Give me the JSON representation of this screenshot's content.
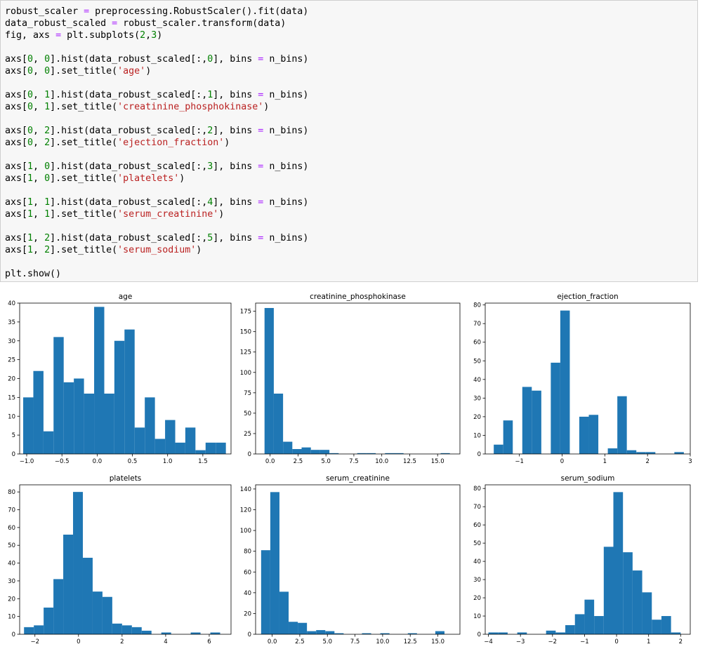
{
  "code": {
    "lines": [
      "robust_scaler = preprocessing.RobustScaler().fit(data)",
      "data_robust_scaled = robust_scaler.transform(data)",
      "fig, axs = plt.subplots(2,3)",
      "",
      "axs[0, 0].hist(data_robust_scaled[:,0], bins = n_bins)",
      "axs[0, 0].set_title('age')",
      "",
      "axs[0, 1].hist(data_robust_scaled[:,1], bins = n_bins)",
      "axs[0, 1].set_title('creatinine_phosphokinase')",
      "",
      "axs[0, 2].hist(data_robust_scaled[:,2], bins = n_bins)",
      "axs[0, 2].set_title('ejection_fraction')",
      "",
      "axs[1, 0].hist(data_robust_scaled[:,3], bins = n_bins)",
      "axs[1, 0].set_title('platelets')",
      "",
      "axs[1, 1].hist(data_robust_scaled[:,4], bins = n_bins)",
      "axs[1, 1].set_title('serum_creatinine')",
      "",
      "axs[1, 2].hist(data_robust_scaled[:,5], bins = n_bins)",
      "axs[1, 2].set_title('serum_sodium')",
      "",
      "plt.show()"
    ]
  },
  "colors": {
    "bar": "#1f77b4",
    "string": "#ba2121",
    "number": "#008000",
    "operator": "#aa22ff"
  },
  "chart_data": [
    {
      "type": "bar",
      "title": "age",
      "xlim": [
        -1.1,
        1.9
      ],
      "ylim": [
        0,
        40
      ],
      "xticks": [
        -1.0,
        -0.5,
        0.0,
        0.5,
        1.0,
        1.5
      ],
      "xtick_labels": [
        "−1.0",
        "−0.5",
        "0.0",
        "0.5",
        "1.0",
        "1.5"
      ],
      "yticks": [
        0,
        5,
        10,
        15,
        20,
        25,
        30,
        35,
        40
      ],
      "ytick_labels": [
        "0",
        "5",
        "10",
        "15",
        "20",
        "25",
        "30",
        "35",
        "40"
      ],
      "bin_edges": [
        -1.05,
        -0.906,
        -0.762,
        -0.619,
        -0.475,
        -0.331,
        -0.187,
        -0.043,
        0.101,
        0.244,
        0.388,
        0.532,
        0.676,
        0.82,
        0.964,
        1.108,
        1.251,
        1.395,
        1.539,
        1.683,
        1.827
      ],
      "counts": [
        15,
        22,
        6,
        31,
        19,
        20,
        16,
        39,
        16,
        30,
        33,
        7,
        15,
        4,
        9,
        3,
        7,
        1,
        3,
        3
      ]
    },
    {
      "type": "bar",
      "title": "creatinine_phosphokinase",
      "xlim": [
        -1.3,
        17.0
      ],
      "ylim": [
        0,
        185
      ],
      "xticks": [
        0,
        2.5,
        5,
        7.5,
        10,
        12.5,
        15
      ],
      "xtick_labels": [
        "0.0",
        "2.5",
        "5.0",
        "7.5",
        "10.0",
        "12.5",
        "15.0"
      ],
      "yticks": [
        0,
        25,
        50,
        75,
        100,
        125,
        150,
        175
      ],
      "ytick_labels": [
        "0",
        "25",
        "50",
        "75",
        "100",
        "125",
        "150",
        "175"
      ],
      "bin_edges": [
        -0.5,
        0.33,
        1.16,
        1.99,
        2.82,
        3.65,
        4.48,
        5.31,
        6.14,
        6.97,
        7.8,
        8.63,
        9.46,
        10.29,
        11.12,
        11.95,
        12.78,
        13.61,
        14.44,
        15.27,
        16.1
      ],
      "counts": [
        179,
        74,
        15,
        6,
        8,
        5,
        5,
        1,
        0,
        0,
        1,
        1,
        0,
        1,
        1,
        0,
        0,
        0,
        0,
        1
      ]
    },
    {
      "type": "bar",
      "title": "ejection_fraction",
      "xlim": [
        -1.8,
        3.0
      ],
      "ylim": [
        0,
        81
      ],
      "xticks": [
        -1,
        0,
        1,
        2,
        3
      ],
      "xtick_labels": [
        "−1",
        "0",
        "1",
        "2",
        "3"
      ],
      "yticks": [
        0,
        10,
        20,
        30,
        40,
        50,
        60,
        70,
        80
      ],
      "ytick_labels": [
        "0",
        "10",
        "20",
        "30",
        "40",
        "50",
        "60",
        "70",
        "80"
      ],
      "bin_edges": [
        -1.6,
        -1.378,
        -1.155,
        -0.932,
        -0.71,
        -0.487,
        -0.265,
        -0.043,
        0.18,
        0.402,
        0.625,
        0.848,
        1.07,
        1.293,
        1.515,
        1.738,
        1.96,
        2.183,
        2.405,
        2.628,
        2.85
      ],
      "counts": [
        5,
        18,
        0,
        36,
        34,
        0,
        49,
        77,
        0,
        20,
        21,
        0,
        3,
        31,
        2,
        1,
        1,
        0,
        0,
        1
      ]
    },
    {
      "type": "bar",
      "title": "platelets",
      "xlim": [
        -2.7,
        7.0
      ],
      "ylim": [
        0,
        84
      ],
      "xticks": [
        -2,
        0,
        2,
        4,
        6
      ],
      "xtick_labels": [
        "−2",
        "0",
        "2",
        "4",
        "6"
      ],
      "yticks": [
        0,
        10,
        20,
        30,
        40,
        50,
        60,
        70,
        80
      ],
      "ytick_labels": [
        "0",
        "10",
        "20",
        "30",
        "40",
        "50",
        "60",
        "70",
        "80"
      ],
      "bin_edges": [
        -2.5,
        -2.05,
        -1.6,
        -1.15,
        -0.7,
        -0.25,
        0.2,
        0.65,
        1.1,
        1.55,
        2.0,
        2.45,
        2.9,
        3.35,
        3.8,
        4.25,
        4.7,
        5.15,
        5.6,
        6.05,
        6.5
      ],
      "counts": [
        4,
        5,
        15,
        31,
        56,
        80,
        43,
        24,
        21,
        6,
        5,
        4,
        2,
        0,
        1,
        0,
        0,
        1,
        0,
        1
      ]
    },
    {
      "type": "bar",
      "title": "serum_creatinine",
      "xlim": [
        -1.5,
        17.0
      ],
      "ylim": [
        0,
        144
      ],
      "xticks": [
        0,
        2.5,
        5,
        7.5,
        10,
        12.5,
        15
      ],
      "xtick_labels": [
        "0.0",
        "2.5",
        "5.0",
        "7.5",
        "10.0",
        "12.5",
        "15.0"
      ],
      "yticks": [
        0,
        20,
        40,
        60,
        80,
        100,
        120,
        140
      ],
      "ytick_labels": [
        "0",
        "20",
        "40",
        "60",
        "80",
        "100",
        "120",
        "140"
      ],
      "bin_edges": [
        -1.0,
        -0.17,
        0.66,
        1.49,
        2.32,
        3.15,
        3.98,
        4.81,
        5.64,
        6.47,
        7.3,
        8.13,
        8.96,
        9.79,
        10.62,
        11.45,
        12.28,
        13.11,
        13.94,
        14.77,
        15.6
      ],
      "counts": [
        81,
        137,
        41,
        12,
        11,
        3,
        4,
        3,
        1,
        0,
        0,
        1,
        0,
        1,
        0,
        0,
        1,
        0,
        0,
        3
      ]
    },
    {
      "type": "bar",
      "title": "serum_sodium",
      "xlim": [
        -4.1,
        2.3
      ],
      "ylim": [
        0,
        82
      ],
      "xticks": [
        -4,
        -3,
        -2,
        -1,
        0,
        1,
        2
      ],
      "xtick_labels": [
        "−4",
        "−3",
        "−2",
        "−1",
        "0",
        "1",
        "2"
      ],
      "yticks": [
        0,
        10,
        20,
        30,
        40,
        50,
        60,
        70,
        80
      ],
      "ytick_labels": [
        "0",
        "10",
        "20",
        "30",
        "40",
        "50",
        "60",
        "70",
        "80"
      ],
      "bin_edges": [
        -4.0,
        -3.7,
        -3.4,
        -3.1,
        -2.8,
        -2.5,
        -2.2,
        -1.9,
        -1.6,
        -1.3,
        -1.0,
        -0.7,
        -0.4,
        -0.1,
        0.2,
        0.5,
        0.8,
        1.1,
        1.4,
        1.7,
        2.0
      ],
      "counts": [
        1,
        1,
        0,
        1,
        0,
        0,
        2,
        1,
        5,
        11,
        19,
        10,
        48,
        78,
        45,
        35,
        23,
        8,
        10,
        1
      ]
    }
  ]
}
